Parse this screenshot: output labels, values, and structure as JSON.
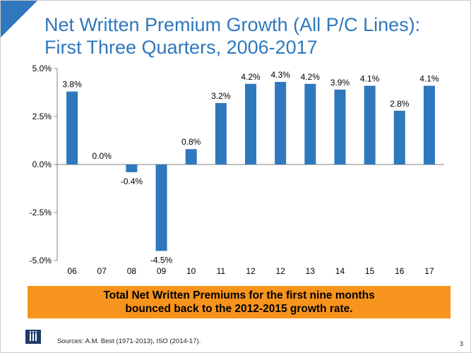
{
  "title": {
    "line1": "Net Written Premium Growth (All P/C Lines):",
    "line2": "First Three Quarters, 2006-2017"
  },
  "chart_data": {
    "type": "bar",
    "categories": [
      "06",
      "07",
      "08",
      "09",
      "10",
      "11",
      "12",
      "12",
      "13",
      "14",
      "15",
      "16",
      "17"
    ],
    "values": [
      3.8,
      0.0,
      -0.4,
      -4.5,
      0.8,
      3.2,
      4.2,
      4.3,
      4.2,
      3.9,
      4.1,
      2.8,
      4.1
    ],
    "labels": [
      "3.8%",
      "0.0%",
      "-0.4%",
      "-4.5%",
      "0.8%",
      "3.2%",
      "4.2%",
      "4.3%",
      "4.2%",
      "3.9%",
      "4.1%",
      "2.8%",
      "4.1%"
    ],
    "yticks": [
      5.0,
      2.5,
      0.0,
      -2.5,
      -5.0
    ],
    "ytick_labels": [
      "5.0%",
      "2.5%",
      "0.0%",
      "-2.5%",
      "-5.0%"
    ],
    "ylim": [
      -5.0,
      5.0
    ],
    "title": "Net Written Premium Growth (All P/C Lines): First Three Quarters, 2006-2017",
    "xlabel": "",
    "ylabel": "",
    "bar_color": "#2f78bd"
  },
  "callout": {
    "line1": "Total Net Written Premiums for the first nine months",
    "line2": "bounced back to the 2012-2015 growth rate.",
    "color": "#f7941d"
  },
  "footer": {
    "sources": "Sources:  A.M. Best (1971-2013), ISO (2014-17).",
    "page": "3"
  },
  "icons": {
    "logo": "iii-logo-icon"
  }
}
